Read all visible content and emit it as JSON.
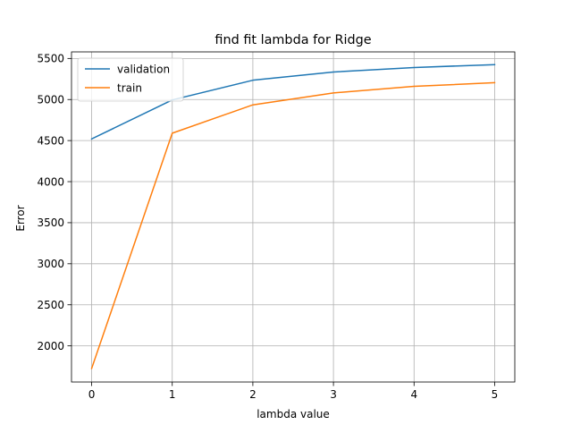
{
  "chart_data": {
    "type": "line",
    "title": "find fit lambda for Ridge",
    "xlabel": "lambda value",
    "ylabel": "Error",
    "x": [
      0,
      1,
      2,
      3,
      4,
      5
    ],
    "xlim": [
      -0.25,
      5.25
    ],
    "ylim": [
      1560,
      5580
    ],
    "xticks": [
      0,
      1,
      2,
      3,
      4,
      5
    ],
    "yticks": [
      2000,
      2500,
      3000,
      3500,
      4000,
      4500,
      5000,
      5500
    ],
    "grid": true,
    "legend_position": "top-left",
    "series": [
      {
        "name": "validation",
        "color": "#1f77b4",
        "values": [
          4520,
          4995,
          5235,
          5335,
          5390,
          5425
        ]
      },
      {
        "name": "train",
        "color": "#ff7f0e",
        "values": [
          1725,
          4590,
          4935,
          5080,
          5160,
          5205
        ]
      }
    ]
  }
}
